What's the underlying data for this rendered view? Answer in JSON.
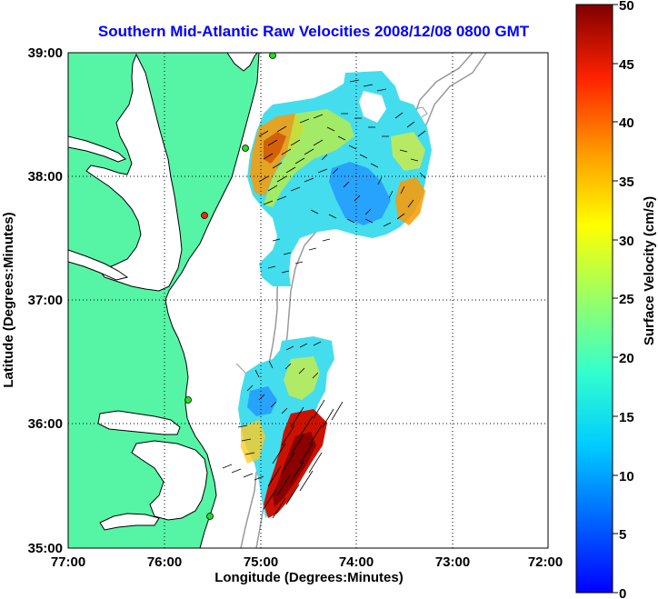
{
  "title": "Southern Mid-Atlantic Raw Velocities 2008/12/08 0800 GMT",
  "title_color": "#0000ff",
  "x_axis": {
    "label": "Longitude (Degrees:Minutes)",
    "ticks": [
      "77:00",
      "76:00",
      "75:00",
      "74:00",
      "73:00",
      "72:00"
    ]
  },
  "y_axis": {
    "label": "Latitude (Degrees:Minutes)",
    "ticks": [
      "39:00",
      "38:00",
      "37:00",
      "36:00",
      "35:00"
    ]
  },
  "colorbar": {
    "label": "Surface Velocity (cm/s)",
    "ticks": [
      "50",
      "45",
      "40",
      "35",
      "30",
      "25",
      "20",
      "15",
      "10",
      "5",
      "0"
    ],
    "min": 0,
    "max": 50
  },
  "colors": {
    "land": "#55f5a5",
    "water": "#ffffff",
    "bathymetry": "#999999",
    "station_green": "#22dd22",
    "station_red": "#ff2200"
  },
  "grid": "dotted",
  "map_extent": {
    "lon": [
      -77,
      -72
    ],
    "lat": [
      35,
      39
    ]
  }
}
